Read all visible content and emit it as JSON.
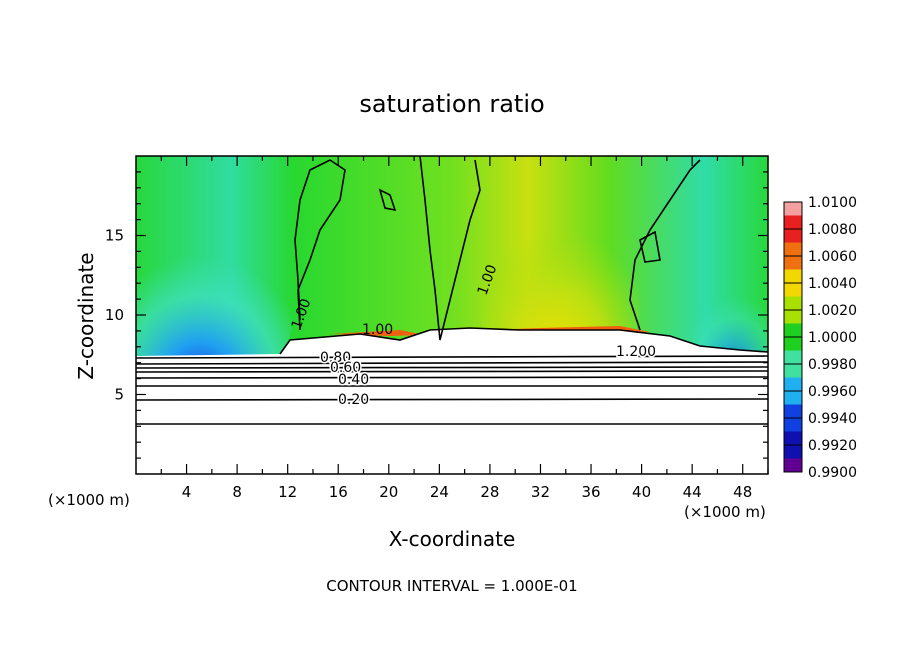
{
  "chart_data": {
    "type": "heatmap",
    "title": "saturation ratio",
    "xlabel": "X-coordinate",
    "ylabel": "Z-coordinate",
    "x_unit": "(×1000 m)",
    "y_unit": "(×1000 m)",
    "xlim": [
      0,
      50
    ],
    "ylim": [
      0,
      20
    ],
    "x_ticks": [
      4,
      8,
      12,
      16,
      20,
      24,
      28,
      32,
      36,
      40,
      44,
      48
    ],
    "y_ticks": [
      5,
      10,
      15
    ],
    "footer": "CONTOUR INTERVAL = 1.000E-01",
    "colorbar": {
      "levels": [
        "1.0100",
        "1.0080",
        "1.0060",
        "1.0040",
        "1.0020",
        "1.0000",
        "0.9980",
        "0.9960",
        "0.9940",
        "0.9920",
        "0.9900"
      ],
      "colors": [
        "#f4a0a0",
        "#e82020",
        "#f07010",
        "#f0d800",
        "#a8e000",
        "#20d020",
        "#40e0a0",
        "#20b0f0",
        "#1040e0",
        "#1010b0",
        "#600090"
      ]
    },
    "contour_labels": [
      "1.00",
      "1.00",
      "1.00",
      "0.80",
      "0.60",
      "0.40",
      "0.20",
      "1.200"
    ],
    "contour_interval": 0.1
  }
}
